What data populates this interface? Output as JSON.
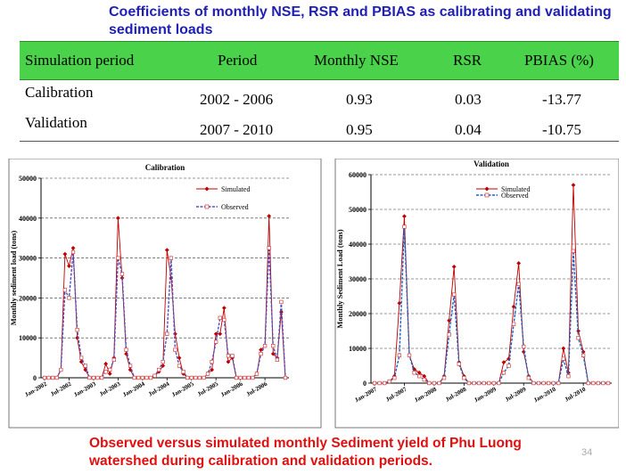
{
  "slide": {
    "title": "Coefficients of monthly NSE, RSR and PBIAS as calibrating and validating sediment loads",
    "footer_line1": "Observed versus simulated monthly Sediment yield of Phu Luong",
    "footer_line2": "watershed during calibration and validation periods.",
    "page_number": "34"
  },
  "table": {
    "headers": [
      "Simulation period",
      "Period",
      "Monthly NSE",
      "RSR",
      "PBIAS (%)"
    ],
    "rows": [
      [
        "Calibration",
        "2002 - 2006",
        "0.93",
        "0.03",
        "-13.77"
      ],
      [
        "Validation",
        "2007 - 2010",
        "0.95",
        "0.04",
        "-10.75"
      ]
    ],
    "header_color": "#4bd24b"
  },
  "chart_data": [
    {
      "type": "line",
      "title": "Calibration",
      "ylabel": "Monthly sediment load (tons)",
      "xlabel": "",
      "ylim": [
        0,
        50000
      ],
      "yticks": [
        "0",
        "10000",
        "20000",
        "30000",
        "40000",
        "50000"
      ],
      "xtick_labels": [
        "Jan-2002",
        "Jul-2002",
        "Jan-2003",
        "Jul-2003",
        "Jan-2004",
        "Jul-2004",
        "Jan-2005",
        "Jul-2005",
        "Jan-2006",
        "Jul-2006"
      ],
      "grid": "horizontal dashed",
      "legend_placement": "top-right",
      "series": [
        {
          "name": "Simulated",
          "color": "#c00000",
          "values": [
            0,
            0,
            0,
            0,
            2000,
            31000,
            28000,
            32500,
            10000,
            4000,
            2000,
            0,
            0,
            0,
            0,
            3500,
            1000,
            5000,
            40000,
            25000,
            6000,
            2000,
            0,
            0,
            0,
            0,
            0,
            500,
            1500,
            3000,
            32000,
            25000,
            11000,
            5000,
            1000,
            0,
            0,
            0,
            0,
            0,
            1000,
            2000,
            11000,
            11000,
            17500,
            4000,
            5000,
            0,
            0,
            0,
            0,
            0,
            1000,
            7000,
            8000,
            40500,
            6000,
            5000,
            16500,
            0
          ]
        },
        {
          "name": "Observed",
          "color": "#5050c0",
          "values": [
            0,
            0,
            0,
            0,
            2000,
            22000,
            20000,
            31500,
            12000,
            5000,
            3000,
            0,
            0,
            0,
            0,
            1500,
            2000,
            4500,
            30000,
            26000,
            7000,
            3000,
            0,
            0,
            0,
            0,
            0,
            500,
            2000,
            4000,
            11000,
            30000,
            7000,
            3000,
            1500,
            0,
            0,
            0,
            0,
            0,
            1000,
            4000,
            9000,
            15000,
            14500,
            5500,
            5500,
            0,
            0,
            0,
            0,
            0,
            1000,
            6000,
            8000,
            32500,
            8000,
            4500,
            19000,
            0
          ]
        }
      ]
    },
    {
      "type": "line",
      "title": "Validation",
      "ylabel": "Monthly Sediment Load (tons)",
      "xlabel": "",
      "ylim": [
        0,
        60000
      ],
      "yticks": [
        "0",
        "10000",
        "20000",
        "30000",
        "40000",
        "50000",
        "60000"
      ],
      "xtick_labels": [
        "Jan-2007",
        "Jul-2007",
        "Jan-2008",
        "Jul-2008",
        "Jan-2009",
        "Jul-2009",
        "Jan-2010",
        "Jul-2010"
      ],
      "grid": "horizontal dashed",
      "legend_placement": "top-right",
      "series": [
        {
          "name": "Simulated",
          "color": "#c00000",
          "values": [
            0,
            0,
            0,
            500,
            2000,
            23000,
            48000,
            8000,
            4000,
            3000,
            2000,
            0,
            0,
            0,
            2000,
            18000,
            33500,
            6000,
            2000,
            0,
            0,
            0,
            0,
            0,
            0,
            0,
            6000,
            7000,
            22000,
            34500,
            9000,
            2000,
            0,
            0,
            0,
            0,
            0,
            0,
            10000,
            3000,
            57000,
            15000,
            9000,
            0,
            0,
            0,
            0,
            0
          ]
        },
        {
          "name": "Observed",
          "color": "#2060c0",
          "values": [
            0,
            0,
            0,
            500,
            1500,
            8000,
            45000,
            8000,
            3000,
            2000,
            1000,
            0,
            0,
            0,
            1500,
            14000,
            25500,
            5500,
            1500,
            0,
            0,
            0,
            0,
            0,
            0,
            0,
            3000,
            5000,
            17000,
            28500,
            10500,
            1500,
            0,
            0,
            0,
            0,
            0,
            0,
            7000,
            2000,
            38000,
            13000,
            8000,
            0,
            0,
            0,
            0,
            0
          ]
        }
      ]
    }
  ]
}
